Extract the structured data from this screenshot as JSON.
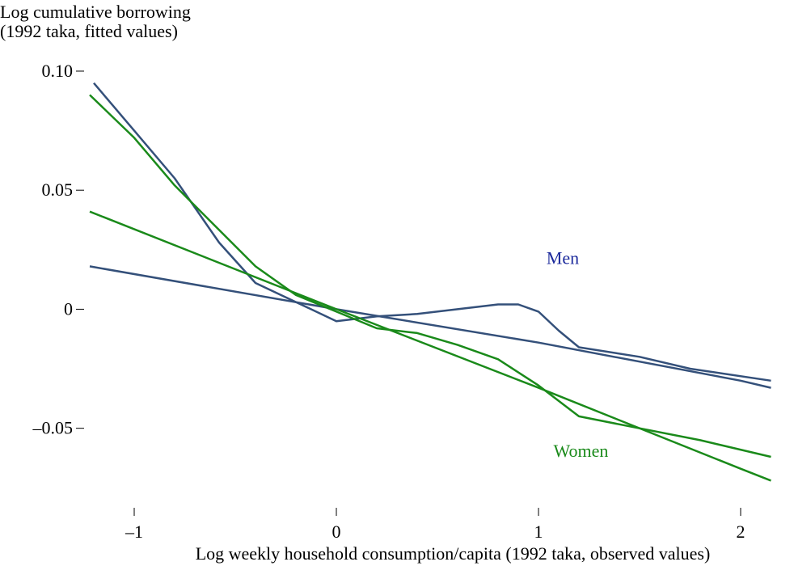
{
  "chart_data": {
    "type": "line",
    "y_label_lines": [
      "Log cumulative borrowing",
      "(1992 taka, fitted values)"
    ],
    "x_label": "Log weekly household consumption/capita (1992 taka, observed values)",
    "xlim": [
      -1.25,
      2.2
    ],
    "ylim": [
      -0.08,
      0.105
    ],
    "xticks": [
      {
        "value": -1,
        "label": "–1"
      },
      0,
      1,
      2
    ],
    "yticks": [
      {
        "value": 0.1,
        "label": "0.10"
      },
      0.05,
      0,
      {
        "value": -0.05,
        "label": "–0.05"
      }
    ],
    "series": [
      {
        "color": "#34507a",
        "x": [
          -1.22,
          0,
          1,
          2,
          2.15
        ],
        "values": [
          0.018,
          0.0,
          -0.014,
          -0.03,
          -0.033
        ]
      },
      {
        "color": "#34507a",
        "x": [
          -1.2,
          -1,
          -0.8,
          -0.58,
          -0.4,
          -0.2,
          0,
          0.2,
          0.4,
          0.6,
          0.8,
          0.9,
          1.0,
          1.1,
          1.2,
          1.5,
          1.75,
          2.15
        ],
        "values": [
          0.095,
          0.075,
          0.055,
          0.028,
          0.011,
          0.003,
          -0.005,
          -0.003,
          -0.002,
          0,
          0.002,
          0.002,
          -0.001,
          -0.009,
          -0.016,
          -0.02,
          -0.025,
          -0.03
        ]
      },
      {
        "color": "#1a8a1a",
        "x": [
          -1.22,
          0,
          1,
          2,
          2.15
        ],
        "values": [
          0.041,
          0.0,
          -0.033,
          -0.067,
          -0.072
        ]
      },
      {
        "color": "#1a8a1a",
        "x": [
          -1.22,
          -1,
          -0.8,
          -0.6,
          -0.4,
          -0.2,
          0,
          0.2,
          0.4,
          0.6,
          0.8,
          1.0,
          1.2,
          1.5,
          1.8,
          2.15
        ],
        "values": [
          0.09,
          0.072,
          0.052,
          0.035,
          0.018,
          0.006,
          -0.001,
          -0.008,
          -0.01,
          -0.015,
          -0.021,
          -0.032,
          -0.045,
          -0.05,
          -0.055,
          -0.062
        ]
      }
    ],
    "annotations": [
      {
        "text": "Men",
        "x": 1.12,
        "y": 0.019,
        "color": "#1c2a9c"
      },
      {
        "text": "Women",
        "x": 1.21,
        "y": -0.062,
        "color": "#1a8a1a"
      }
    ]
  }
}
